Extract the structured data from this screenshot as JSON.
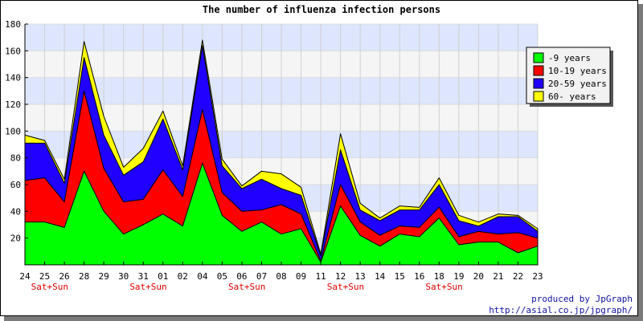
{
  "chart_data": {
    "type": "area",
    "stacked": true,
    "title": "The number of influenza infection persons",
    "xlabel": "",
    "ylabel": "",
    "categories": [
      "24",
      "25",
      "26",
      "28",
      "29",
      "30",
      "31",
      "01",
      "02",
      "04",
      "05",
      "06",
      "07",
      "08",
      "09",
      "11",
      "12",
      "13",
      "14",
      "15",
      "16",
      "18",
      "19",
      "20",
      "21",
      "22",
      "23"
    ],
    "weekend_labels": [
      {
        "after_index": 1,
        "text": "Sat+Sun"
      },
      {
        "after_index": 6,
        "text": "Sat+Sun"
      },
      {
        "after_index": 11,
        "text": "Sat+Sun"
      },
      {
        "after_index": 16,
        "text": "Sat+Sun"
      },
      {
        "after_index": 21,
        "text": "Sat+Sun"
      }
    ],
    "ylim": [
      0,
      180
    ],
    "yticks": [
      20,
      40,
      60,
      80,
      100,
      120,
      140,
      160,
      180
    ],
    "series": [
      {
        "name": "-9 years",
        "color": "#00ff00",
        "values": [
          32,
          32,
          28,
          70,
          40,
          23,
          30,
          38,
          29,
          76,
          37,
          25,
          32,
          23,
          27,
          2,
          44,
          22,
          14,
          23,
          21,
          35,
          15,
          17,
          17,
          9,
          14
        ]
      },
      {
        "name": "10-19 years",
        "color": "#ff0000",
        "values": [
          31,
          33,
          19,
          60,
          32,
          24,
          19,
          33,
          22,
          40,
          17,
          15,
          9,
          22,
          11,
          1,
          16,
          10,
          8,
          6,
          7,
          8,
          6,
          8,
          6,
          15,
          6
        ]
      },
      {
        "name": "20-59 years",
        "color": "#2000ff",
        "values": [
          28,
          26,
          14,
          25,
          25,
          20,
          28,
          38,
          20,
          48,
          20,
          17,
          23,
          12,
          14,
          4,
          26,
          9,
          11,
          12,
          13,
          17,
          12,
          4,
          13,
          12,
          5
        ]
      },
      {
        "name": "60- years",
        "color": "#ffff00",
        "values": [
          6,
          2,
          3,
          12,
          14,
          6,
          10,
          6,
          3,
          4,
          5,
          2,
          6,
          11,
          6,
          1,
          12,
          5,
          2,
          3,
          2,
          5,
          4,
          3,
          2,
          1,
          2
        ]
      }
    ],
    "legend_position": "right",
    "grid": true,
    "band_colors": [
      "#f5f5f5",
      "#dde6fd"
    ]
  },
  "credits": {
    "line1": "produced by JpGraph",
    "line2": "http://asial.co.jp/jpgraph/"
  }
}
